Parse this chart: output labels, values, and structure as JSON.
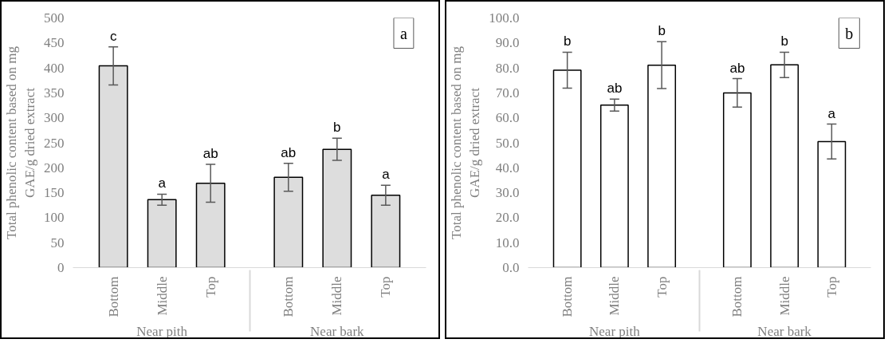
{
  "chart_data": [
    {
      "type": "bar",
      "ylabel": "Total phenolic content based on mg\nGAE/g dried extract",
      "categories": [
        "Bottom",
        "Middle",
        "Top",
        "Bottom",
        "Middle",
        "Top"
      ],
      "values": [
        404,
        136,
        169,
        181,
        237,
        145
      ],
      "errors": [
        38,
        11,
        38,
        28,
        22,
        20
      ],
      "color": "#dddddd",
      "value_labels": [
        "c",
        "a",
        "ab",
        "ab",
        "b",
        "a"
      ],
      "annotations": [
        "a",
        "Near pith",
        "Near bark"
      ],
      "ylim": [
        0,
        500
      ],
      "yticks": [
        0,
        50,
        100,
        150,
        200,
        250,
        300,
        350,
        400,
        450,
        500
      ]
    },
    {
      "type": "bar",
      "ylabel": "Total phenolic content based on mg\nGAE/g dried extract",
      "categories": [
        "Bottom",
        "Middle",
        "Top",
        "Bottom",
        "Middle",
        "Top"
      ],
      "values": [
        79.1,
        65.1,
        81.1,
        70.0,
        81.2,
        50.5
      ],
      "errors": [
        7.2,
        2.4,
        9.4,
        5.7,
        5.1,
        7.0
      ],
      "color": "#ffffff",
      "value_labels": [
        "b",
        "ab",
        "b",
        "ab",
        "b",
        "a"
      ],
      "annotations": [
        "b",
        "Near pith",
        "Near bark"
      ],
      "ylim": [
        0,
        100
      ],
      "yticks": [
        {
          "value": 0,
          "label": "0.0"
        },
        {
          "value": 10,
          "label": "10.0"
        },
        {
          "value": 20,
          "label": "20.0"
        },
        {
          "value": 30,
          "label": "30.0"
        },
        {
          "value": 40,
          "label": "40.0"
        },
        {
          "value": 50,
          "label": "50.0"
        },
        {
          "value": 60,
          "label": "60.0"
        },
        {
          "value": 70,
          "label": "70.0"
        },
        {
          "value": 80,
          "label": "80.0"
        },
        {
          "value": 90,
          "label": "90.0"
        },
        {
          "value": 100,
          "label": "100.0"
        }
      ]
    }
  ]
}
